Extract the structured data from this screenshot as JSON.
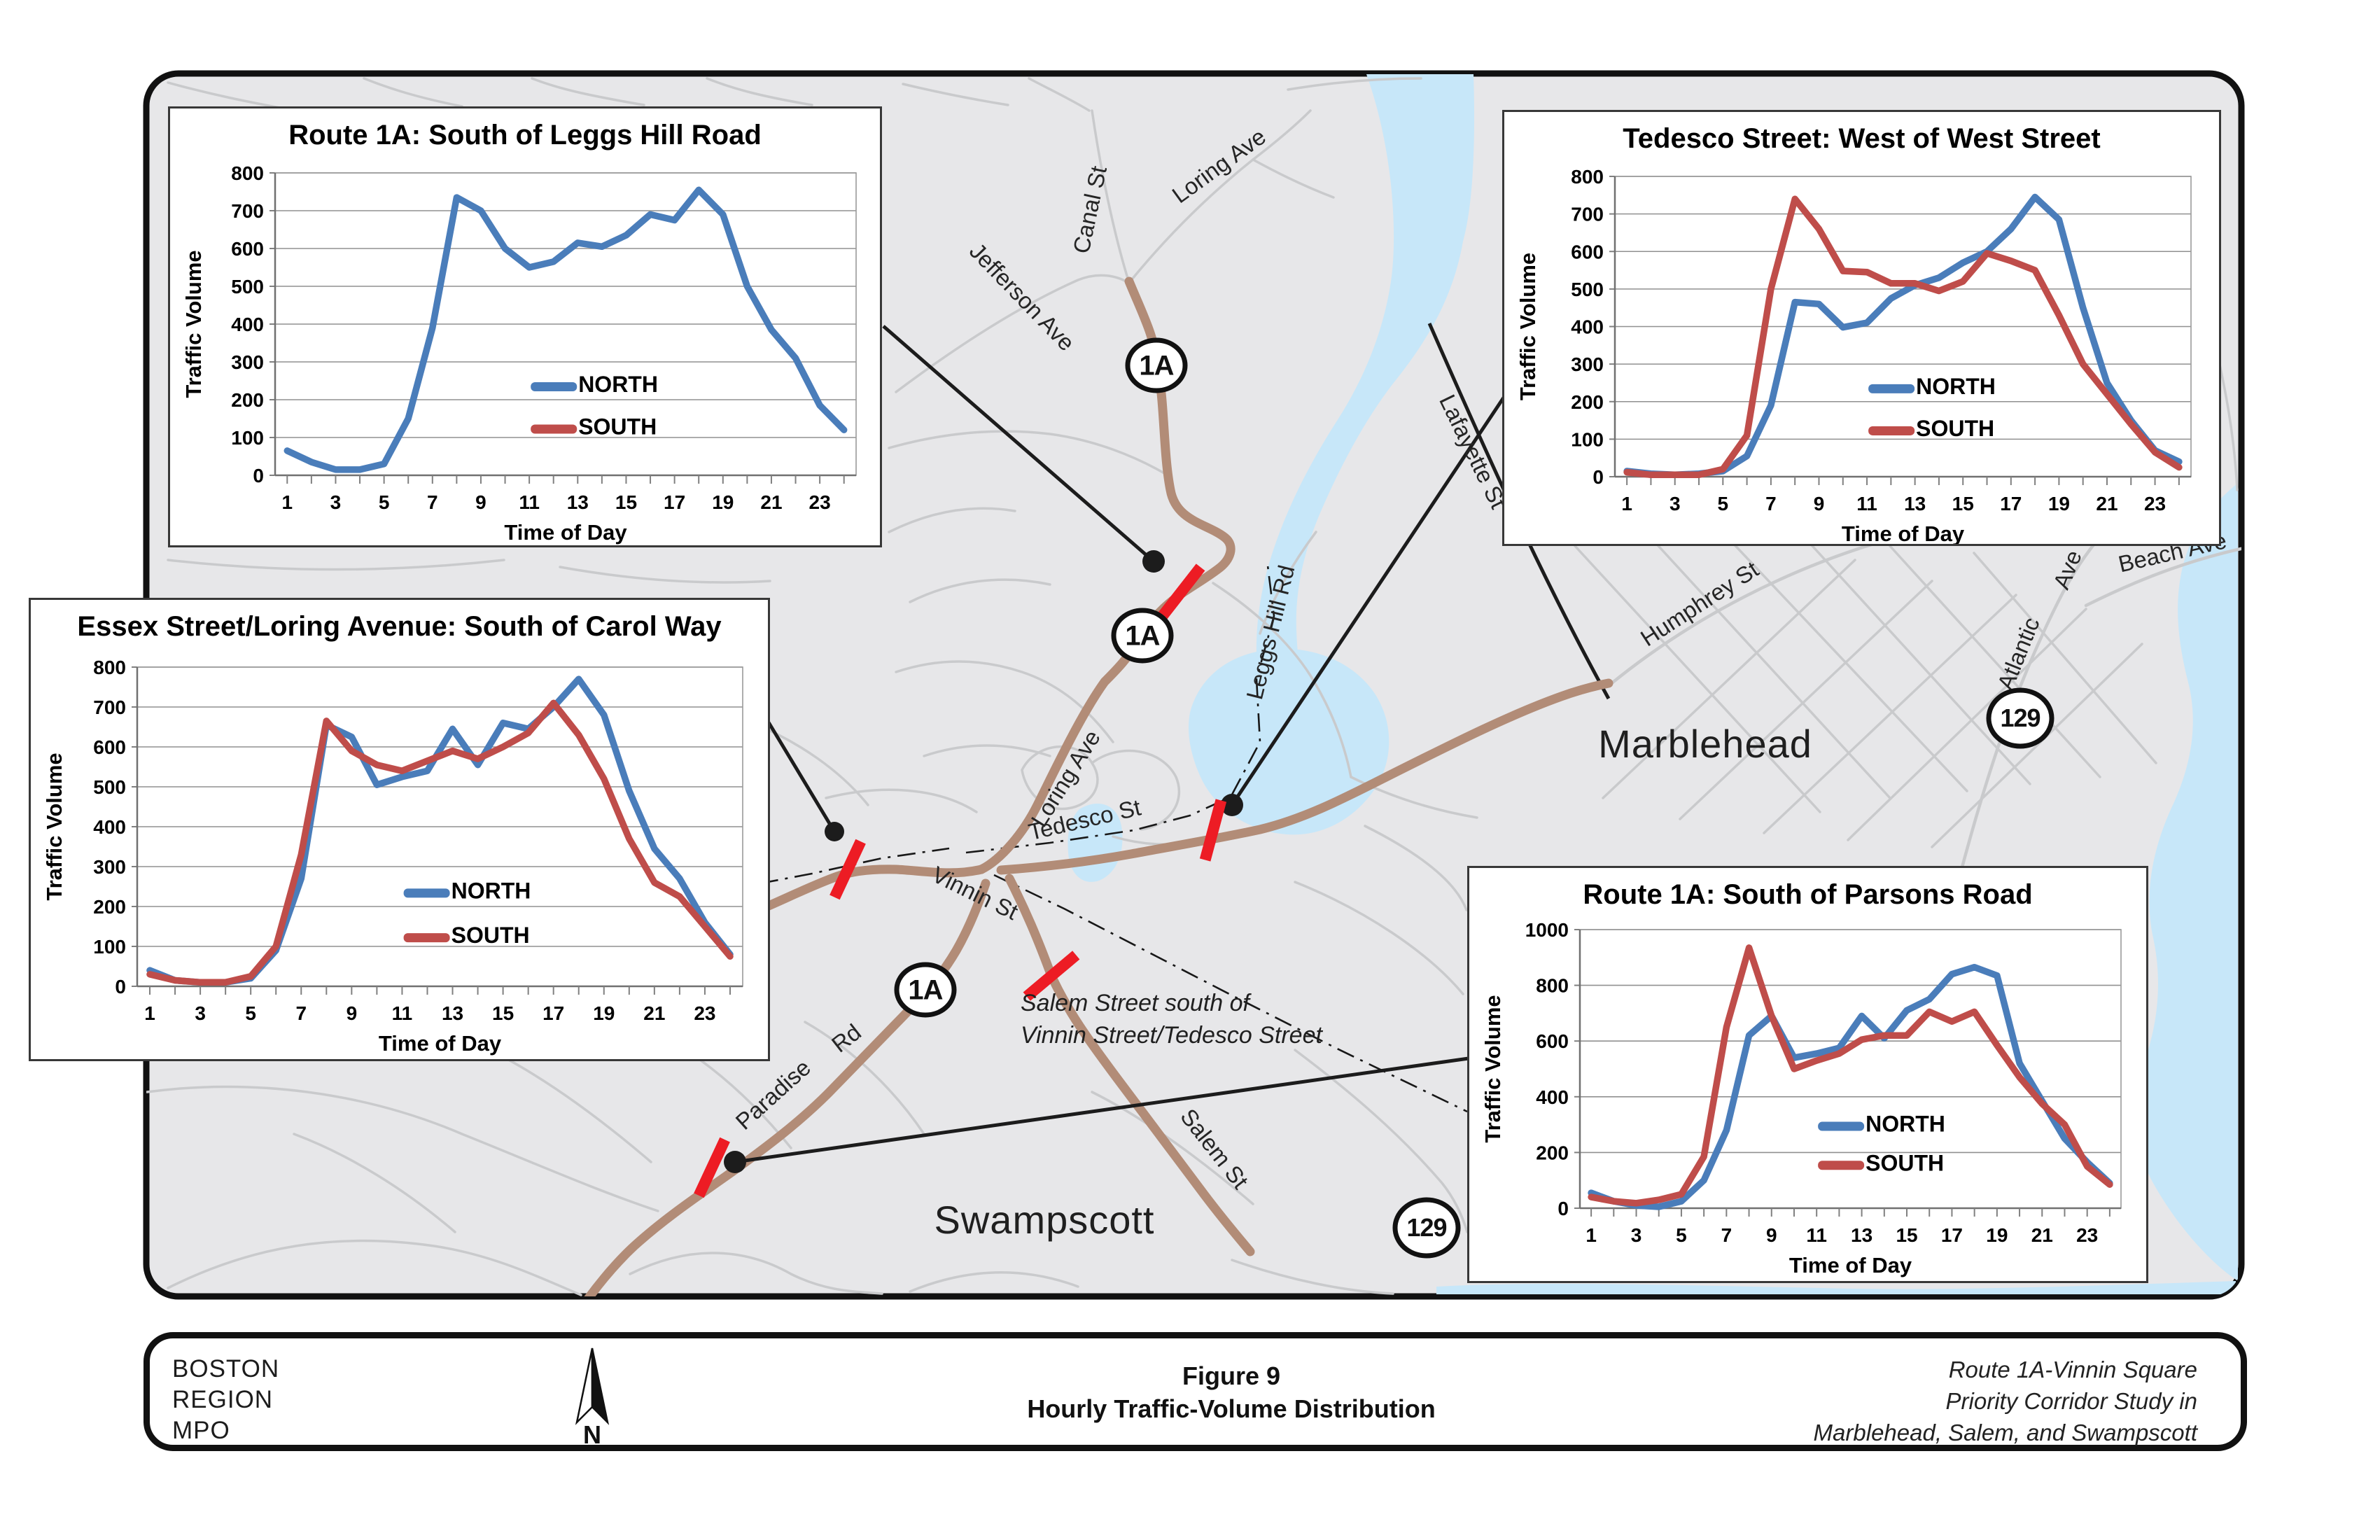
{
  "map": {
    "background_color": "#e7e7e9",
    "local_road_color": "#c9cacc",
    "highway_color": "#b28c77",
    "water_color": "#c7e7f9",
    "count_tick_color": "#ed1c24",
    "towns": [
      {
        "id": "marblehead",
        "label": "Marblehead"
      },
      {
        "id": "swampscott",
        "label": "Swampscott"
      }
    ],
    "street_labels": [
      {
        "id": "canal-st",
        "text": "Canal St"
      },
      {
        "id": "loring-ave-north",
        "text": "Loring Ave"
      },
      {
        "id": "jefferson-ave",
        "text": "Jefferson Ave"
      },
      {
        "id": "lafayette-st",
        "text": "Lafayette St"
      },
      {
        "id": "leggs-hill-rd",
        "text": "Leggs Hill Rd"
      },
      {
        "id": "loring-ave-south",
        "text": "Loring Ave"
      },
      {
        "id": "tedesco-st",
        "text": "Tedesco St"
      },
      {
        "id": "vinnin-st",
        "text": "Vinnin St"
      },
      {
        "id": "humphrey-st",
        "text": "Humphrey  St"
      },
      {
        "id": "atlantic",
        "text": "Atlantic"
      },
      {
        "id": "atlantic-ave-suffix",
        "text": "Ave"
      },
      {
        "id": "beach-ave",
        "text": "Beach Ave"
      },
      {
        "id": "salem-st",
        "text": "Salem St"
      },
      {
        "id": "paradise",
        "text": "Paradise"
      },
      {
        "id": "paradise-rd-suffix",
        "text": "Rd"
      }
    ],
    "route_shields": [
      {
        "id": "shield-1a-1",
        "text": "1A"
      },
      {
        "id": "shield-1a-2",
        "text": "1A"
      },
      {
        "id": "shield-1a-3",
        "text": "1A"
      },
      {
        "id": "shield-129-1",
        "text": "129"
      },
      {
        "id": "shield-129-2",
        "text": "129"
      }
    ],
    "annotation": {
      "line1": "Salem Street south of",
      "line2": "Vinnin Street/Tedesco Street"
    }
  },
  "footer": {
    "agency_lines": [
      "BOSTON",
      "REGION",
      "MPO"
    ],
    "north_label": "N",
    "figure_label": "Figure 9",
    "figure_title": "Hourly Traffic-Volume Distribution",
    "project_lines": [
      "Route 1A-Vinnin Square",
      "Priority Corridor Study in",
      "Marblehead, Salem, and Swampscott"
    ]
  },
  "chart_data": [
    {
      "id": "chart-leggs-hill",
      "type": "line",
      "title": "Route 1A: South of Leggs Hill Road",
      "xlabel": "Time of Day",
      "ylabel": "Traffic Volume",
      "ylim": [
        0,
        800
      ],
      "ytick_step": 100,
      "x": [
        1,
        2,
        3,
        4,
        5,
        6,
        7,
        8,
        9,
        10,
        11,
        12,
        13,
        14,
        15,
        16,
        17,
        18,
        19,
        20,
        21,
        22,
        23,
        24
      ],
      "x_tick_labels": [
        1,
        3,
        5,
        7,
        9,
        11,
        13,
        15,
        17,
        19,
        21,
        23
      ],
      "grid": true,
      "legend_position": "inside-lower-middle",
      "series": [
        {
          "name": "NORTH",
          "color": "#4a7dba",
          "values": [
            65,
            35,
            15,
            15,
            30,
            150,
            390,
            735,
            700,
            600,
            550,
            565,
            615,
            605,
            635,
            690,
            675,
            755,
            690,
            500,
            385,
            310,
            185,
            120
          ]
        },
        {
          "name": "SOUTH",
          "color": "#bf4d4a",
          "values": []
        }
      ]
    },
    {
      "id": "chart-tedesco",
      "type": "line",
      "title": "Tedesco Street: West of West Street",
      "xlabel": "Time of Day",
      "ylabel": "Traffic Volume",
      "ylim": [
        0,
        800
      ],
      "ytick_step": 100,
      "x": [
        1,
        2,
        3,
        4,
        5,
        6,
        7,
        8,
        9,
        10,
        11,
        12,
        13,
        14,
        15,
        16,
        17,
        18,
        19,
        20,
        21,
        22,
        23,
        24
      ],
      "x_tick_labels": [
        1,
        3,
        5,
        7,
        9,
        11,
        13,
        15,
        17,
        19,
        21,
        23
      ],
      "grid": true,
      "legend_position": "inside-lower-middle",
      "series": [
        {
          "name": "NORTH",
          "color": "#4a7dba",
          "values": [
            15,
            8,
            5,
            8,
            15,
            55,
            190,
            465,
            460,
            398,
            410,
            475,
            510,
            530,
            570,
            600,
            660,
            745,
            685,
            450,
            250,
            150,
            70,
            40
          ]
        },
        {
          "name": "SOUTH",
          "color": "#bf4d4a",
          "values": [
            12,
            5,
            5,
            5,
            20,
            110,
            500,
            740,
            660,
            548,
            545,
            515,
            515,
            495,
            520,
            595,
            575,
            550,
            430,
            300,
            220,
            140,
            65,
            25
          ]
        }
      ]
    },
    {
      "id": "chart-essex-loring",
      "type": "line",
      "title": "Essex Street/Loring Avenue: South of Carol Way",
      "xlabel": "Time of Day",
      "ylabel": "Traffic Volume",
      "ylim": [
        0,
        800
      ],
      "ytick_step": 100,
      "x": [
        1,
        2,
        3,
        4,
        5,
        6,
        7,
        8,
        9,
        10,
        11,
        12,
        13,
        14,
        15,
        16,
        17,
        18,
        19,
        20,
        21,
        22,
        23,
        24
      ],
      "x_tick_labels": [
        1,
        3,
        5,
        7,
        9,
        11,
        13,
        15,
        17,
        19,
        21,
        23
      ],
      "grid": true,
      "legend_position": "inside-lower-middle",
      "series": [
        {
          "name": "NORTH",
          "color": "#4a7dba",
          "values": [
            40,
            15,
            10,
            10,
            20,
            90,
            270,
            655,
            625,
            505,
            525,
            540,
            645,
            555,
            660,
            645,
            700,
            770,
            680,
            490,
            345,
            270,
            160,
            80
          ]
        },
        {
          "name": "SOUTH",
          "color": "#bf4d4a",
          "values": [
            30,
            15,
            10,
            10,
            25,
            100,
            330,
            665,
            590,
            555,
            540,
            565,
            590,
            570,
            600,
            635,
            710,
            630,
            520,
            370,
            260,
            225,
            150,
            75
          ]
        }
      ]
    },
    {
      "id": "chart-parsons",
      "type": "line",
      "title": "Route 1A: South of Parsons Road",
      "xlabel": "Time of Day",
      "ylabel": "Traffic Volume",
      "ylim": [
        0,
        1000
      ],
      "ytick_step": 200,
      "x": [
        1,
        2,
        3,
        4,
        5,
        6,
        7,
        8,
        9,
        10,
        11,
        12,
        13,
        14,
        15,
        16,
        17,
        18,
        19,
        20,
        21,
        22,
        23,
        24
      ],
      "x_tick_labels": [
        1,
        3,
        5,
        7,
        9,
        11,
        13,
        15,
        17,
        19,
        21,
        23
      ],
      "grid": true,
      "legend_position": "inside-lower-middle",
      "series": [
        {
          "name": "NORTH",
          "color": "#4a7dba",
          "values": [
            55,
            25,
            10,
            5,
            25,
            100,
            280,
            620,
            690,
            540,
            555,
            575,
            690,
            610,
            710,
            750,
            840,
            865,
            835,
            520,
            385,
            250,
            165,
            90
          ]
        },
        {
          "name": "SOUTH",
          "color": "#bf4d4a",
          "values": [
            40,
            25,
            18,
            30,
            50,
            185,
            650,
            935,
            690,
            500,
            530,
            555,
            605,
            620,
            620,
            705,
            670,
            705,
            585,
            470,
            375,
            300,
            150,
            85
          ]
        }
      ]
    }
  ]
}
